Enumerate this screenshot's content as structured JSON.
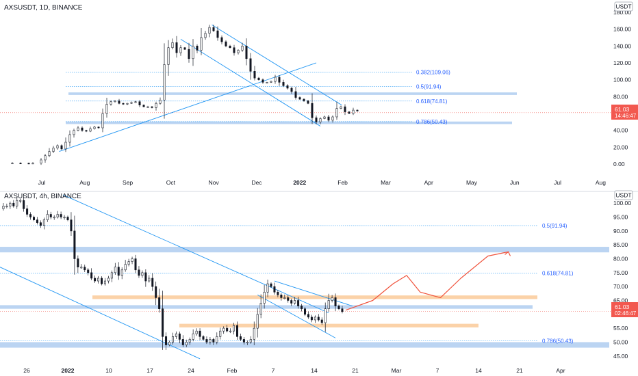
{
  "top_panel": {
    "symbol_title": "AXSUSDT, 1D, BINANCE",
    "currency_badge": "USDT",
    "price_tag": "61.03",
    "countdown": "14:46:47"
  },
  "bottom_panel": {
    "symbol_title": "AXSUSDT, 4h, BINANCE",
    "currency_badge": "USDT",
    "price_tag": "61.03",
    "countdown": "02:46:47"
  },
  "colors": {
    "bull": "#26a69a",
    "bear": "#ef5350",
    "candle": "#131722",
    "trendline": "#2196f3",
    "fib_line": "#2196f3",
    "zone_blue": "#bbd4f2",
    "zone_orange": "#fbd2a8",
    "projection": "#f0513a",
    "price_tag_bg": "#f2584f"
  },
  "chart_data": [
    {
      "type": "candlestick",
      "title": "AXSUSDT, 1D, BINANCE",
      "y_ticks": [
        "180.00",
        "160.00",
        "140.00",
        "120.00",
        "100.00",
        "80.00",
        "60.00",
        "40.00",
        "20.00",
        "0.00"
      ],
      "y_tick_values": [
        180,
        160,
        140,
        120,
        100,
        80,
        60,
        40,
        20,
        0
      ],
      "ylim": [
        -8,
        188
      ],
      "x_ticks": [
        "Jul",
        "Aug",
        "Sep",
        "Oct",
        "Nov",
        "Dec",
        "2022",
        "Feb",
        "Mar",
        "Apr",
        "May",
        "Jun",
        "Jul",
        "Aug"
      ],
      "x_tick_bold": [
        false,
        false,
        false,
        false,
        false,
        false,
        true,
        false,
        false,
        false,
        false,
        false,
        false,
        false
      ],
      "fib_levels": [
        {
          "label": "0.382(109.06)",
          "value": 109.06
        },
        {
          "label": "0.5(91.94)",
          "value": 91.94
        },
        {
          "label": "0.618(74.81)",
          "value": 74.81
        },
        {
          "label": "0.786(50.43)",
          "value": 50.43
        }
      ],
      "zones": [
        {
          "low": 82,
          "high": 85
        },
        {
          "low": 47.5,
          "high": 50.5
        }
      ],
      "last_price": 61.03,
      "series": [
        {
          "points": [
            [
              1.0,
              1.2
            ],
            [
              1.5,
              1.3
            ],
            [
              2.5,
              1.2
            ],
            [
              3.5,
              1.0
            ],
            [
              4.0,
              1.2
            ],
            [
              5.0,
              5
            ],
            [
              5.5,
              10
            ],
            [
              6.0,
              15
            ],
            [
              6.5,
              19
            ],
            [
              7.0,
              22
            ],
            [
              7.5,
              18
            ],
            [
              8.0,
              26
            ],
            [
              8.5,
              35
            ],
            [
              9.0,
              40
            ],
            [
              9.5,
              43
            ],
            [
              10.0,
              40
            ],
            [
              10.5,
              39
            ],
            [
              11.0,
              42
            ],
            [
              11.5,
              44
            ],
            [
              12.0,
              43
            ],
            [
              12.5,
              60
            ],
            [
              13.0,
              71
            ],
            [
              13.5,
              74
            ],
            [
              14.0,
              75
            ],
            [
              14.5,
              72
            ],
            [
              15.0,
              71
            ],
            [
              15.5,
              72
            ],
            [
              16.0,
              73
            ],
            [
              16.5,
              74
            ],
            [
              17.0,
              70
            ],
            [
              17.5,
              68
            ],
            [
              18.0,
              68
            ],
            [
              18.5,
              67
            ],
            [
              19.0,
              72
            ],
            [
              19.5,
              76
            ],
            [
              20.0,
              118
            ],
            [
              20.5,
              138
            ],
            [
              21.0,
              144
            ],
            [
              21.5,
              132
            ],
            [
              22.0,
              138
            ],
            [
              22.5,
              136
            ],
            [
              23.0,
              125
            ],
            [
              23.5,
              140
            ],
            [
              24.0,
              135
            ],
            [
              24.5,
              150
            ],
            [
              25.0,
              155
            ],
            [
              25.5,
              162
            ],
            [
              26.0,
              158
            ],
            [
              26.5,
              150
            ],
            [
              27.0,
              145
            ],
            [
              27.5,
              140
            ],
            [
              28.0,
              138
            ],
            [
              28.5,
              132
            ],
            [
              29.0,
              135
            ],
            [
              29.5,
              140
            ],
            [
              30.0,
              125
            ],
            [
              30.5,
              110
            ],
            [
              31.0,
              102
            ],
            [
              31.5,
              100
            ],
            [
              32.0,
              97
            ],
            [
              32.5,
              97
            ],
            [
              33.0,
              98
            ],
            [
              33.5,
              103
            ],
            [
              34.0,
              97
            ],
            [
              34.5,
              93
            ],
            [
              35.0,
              90
            ],
            [
              35.5,
              86
            ],
            [
              36.0,
              79
            ],
            [
              36.5,
              77
            ],
            [
              37.0,
              75
            ],
            [
              37.5,
              72
            ],
            [
              38.0,
              55
            ],
            [
              38.5,
              50
            ],
            [
              39.0,
              54
            ],
            [
              39.5,
              56
            ],
            [
              40.0,
              52
            ],
            [
              40.5,
              56
            ],
            [
              41.0,
              66
            ],
            [
              41.5,
              68
            ],
            [
              42.0,
              62
            ],
            [
              42.5,
              60
            ],
            [
              43.0,
              64
            ],
            [
              43.5,
              63
            ]
          ]
        }
      ],
      "trendlines": [
        {
          "from": [
            7.2,
            15
          ],
          "to": [
            38.5,
            120
          ]
        },
        {
          "from": [
            22.0,
            148
          ],
          "to": [
            39.0,
            45
          ]
        },
        {
          "from": [
            25.8,
            165
          ],
          "to": [
            41.6,
            70
          ]
        }
      ]
    },
    {
      "type": "candlestick",
      "title": "AXSUSDT, 4h, BINANCE",
      "y_ticks": [
        "100.00",
        "95.00",
        "90.00",
        "85.00",
        "80.00",
        "75.00",
        "70.00",
        "65.00",
        "60.00",
        "55.00",
        "50.00",
        "45.00"
      ],
      "y_tick_values": [
        100,
        95,
        90,
        85,
        80,
        75,
        70,
        65,
        60,
        55,
        50,
        45
      ],
      "ylim": [
        41.5,
        103.5
      ],
      "x_ticks": [
        "26",
        "2022",
        "10",
        "17",
        "24",
        "Feb",
        "7",
        "14",
        "21",
        "Mar",
        "7",
        "14",
        "21",
        "Apr"
      ],
      "x_tick_bold": [
        false,
        true,
        false,
        false,
        false,
        false,
        false,
        false,
        false,
        false,
        false,
        false,
        false,
        false
      ],
      "fib_levels": [
        {
          "label": "0.5(91.94)",
          "value": 91.94
        },
        {
          "label": "0.618(74.81)",
          "value": 74.81
        },
        {
          "label": "0.786(50.43)",
          "value": 50.43
        }
      ],
      "zones_blue": [
        {
          "low": 82.3,
          "high": 84.3
        },
        {
          "low": 62.0,
          "high": 63.3
        },
        {
          "low": 48.0,
          "high": 50.0
        }
      ],
      "zones_orange": [
        {
          "low": 65.5,
          "high": 66.8
        },
        {
          "low": 55.3,
          "high": 56.6
        }
      ],
      "last_price": 61.03,
      "series": [
        {
          "points": [
            [
              0,
              98
            ],
            [
              0.5,
              99
            ],
            [
              1,
              99
            ],
            [
              1.5,
              100
            ],
            [
              2,
              99
            ],
            [
              2.5,
              101
            ],
            [
              3,
              101
            ],
            [
              3.5,
              98
            ],
            [
              4,
              96
            ],
            [
              4.5,
              95
            ],
            [
              5,
              94
            ],
            [
              5.5,
              93
            ],
            [
              6,
              92
            ],
            [
              6.5,
              94
            ],
            [
              7,
              96
            ],
            [
              7.5,
              95
            ],
            [
              8,
              95
            ],
            [
              8.5,
              96
            ],
            [
              9,
              95
            ],
            [
              9.5,
              95
            ],
            [
              10,
              94
            ],
            [
              10.5,
              90
            ],
            [
              11,
              80
            ],
            [
              11.5,
              77
            ],
            [
              12,
              77
            ],
            [
              12.5,
              76
            ],
            [
              13,
              75
            ],
            [
              13.5,
              73
            ],
            [
              14,
              72
            ],
            [
              14.5,
              73
            ],
            [
              15,
              71
            ],
            [
              15.5,
              72
            ],
            [
              16,
              73
            ],
            [
              16.5,
              75
            ],
            [
              17,
              77
            ],
            [
              17.5,
              74
            ],
            [
              18,
              76
            ],
            [
              18.5,
              78
            ],
            [
              19,
              79
            ],
            [
              19.5,
              80
            ],
            [
              20,
              76
            ],
            [
              20.5,
              74
            ],
            [
              21,
              75
            ],
            [
              21.5,
              72
            ],
            [
              22,
              73
            ],
            [
              22.5,
              70
            ],
            [
              23,
              66
            ],
            [
              23.5,
              62
            ],
            [
              24,
              52
            ],
            [
              24.5,
              49
            ],
            [
              25,
              50
            ],
            [
              25.5,
              52
            ],
            [
              26,
              53
            ],
            [
              26.5,
              51
            ],
            [
              27,
              49
            ],
            [
              27.5,
              50
            ],
            [
              28,
              51
            ],
            [
              28.5,
              53
            ],
            [
              29,
              54
            ],
            [
              29.5,
              52
            ],
            [
              30,
              51
            ],
            [
              30.5,
              50
            ],
            [
              31,
              51
            ],
            [
              31.5,
              50
            ],
            [
              32,
              52
            ],
            [
              32.5,
              54
            ],
            [
              33,
              55
            ],
            [
              33.5,
              54
            ],
            [
              34,
              54
            ],
            [
              34.5,
              56
            ],
            [
              35,
              52
            ],
            [
              35.5,
              51
            ],
            [
              36,
              50
            ],
            [
              36.5,
              50
            ],
            [
              37,
              51
            ],
            [
              37.5,
              55
            ],
            [
              38,
              60
            ],
            [
              38.5,
              64
            ],
            [
              39,
              68
            ],
            [
              39.5,
              71
            ],
            [
              40,
              70
            ],
            [
              40.5,
              68
            ],
            [
              41,
              67
            ],
            [
              41.5,
              66
            ],
            [
              42,
              66
            ],
            [
              42.5,
              65
            ],
            [
              43,
              64
            ],
            [
              43.5,
              65
            ],
            [
              44,
              63
            ],
            [
              44.5,
              62
            ],
            [
              45,
              60
            ],
            [
              45.5,
              59
            ],
            [
              46,
              58
            ],
            [
              46.5,
              59
            ],
            [
              47,
              58
            ],
            [
              47.5,
              57
            ],
            [
              48,
              62
            ],
            [
              48.5,
              65
            ],
            [
              49,
              66
            ],
            [
              49.5,
              63
            ],
            [
              50,
              62
            ],
            [
              50.5,
              61
            ]
          ]
        }
      ],
      "trendlines": [
        {
          "from": [
            0,
            77
          ],
          "to": [
            29.5,
            44
          ]
        },
        {
          "from": [
            9.3,
            103
          ],
          "to": [
            48.5,
            60.5
          ]
        },
        {
          "from": [
            40.5,
            72
          ],
          "to": [
            52,
            63
          ]
        },
        {
          "from": [
            38,
            67
          ],
          "to": [
            49.5,
            51.5
          ]
        }
      ],
      "projection": [
        [
          51,
          61.5
        ],
        [
          55,
          65
        ],
        [
          58,
          71
        ],
        [
          60,
          74
        ],
        [
          62,
          68
        ],
        [
          65,
          66
        ],
        [
          68,
          73
        ],
        [
          72,
          81
        ],
        [
          75,
          82.5
        ]
      ]
    }
  ]
}
